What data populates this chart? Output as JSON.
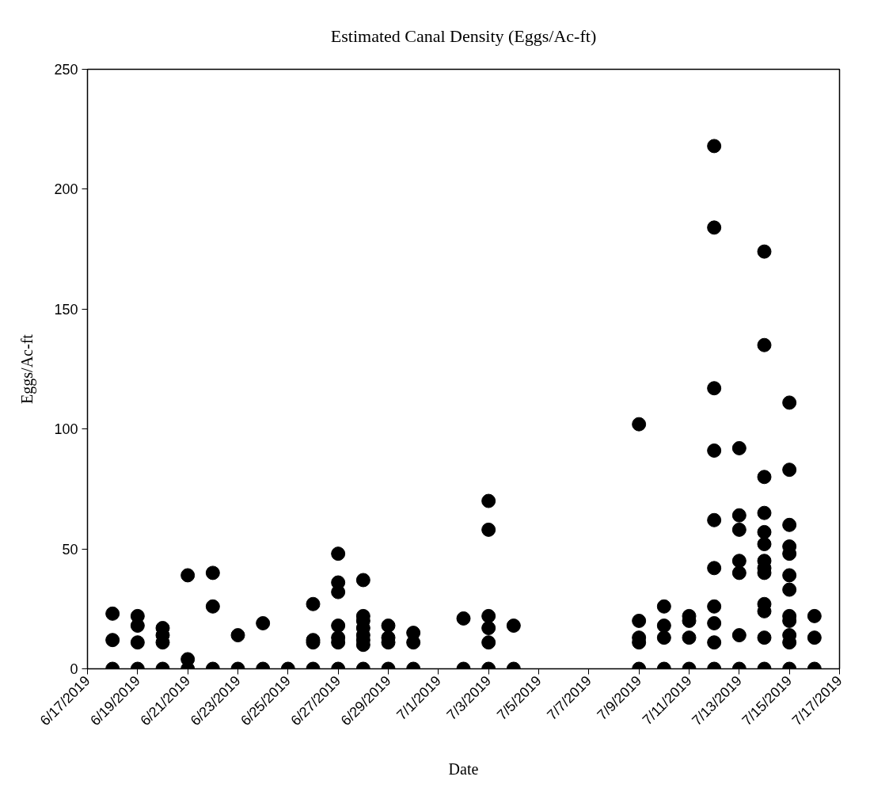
{
  "chart_data": {
    "type": "scatter",
    "title": "Estimated Canal Density (Eggs/Ac-ft)",
    "xlabel": "Date",
    "ylabel": "Eggs/Ac-ft",
    "marker": "circle",
    "grid": false,
    "xlim": [
      "2019-06-17",
      "2019-07-17"
    ],
    "xticks": [
      {
        "value": "2019-06-17",
        "label": "6/17/2019"
      },
      {
        "value": "2019-06-19",
        "label": "6/19/2019"
      },
      {
        "value": "2019-06-21",
        "label": "6/21/2019"
      },
      {
        "value": "2019-06-23",
        "label": "6/23/2019"
      },
      {
        "value": "2019-06-25",
        "label": "6/25/2019"
      },
      {
        "value": "2019-06-27",
        "label": "6/27/2019"
      },
      {
        "value": "2019-06-29",
        "label": "6/29/2019"
      },
      {
        "value": "2019-07-01",
        "label": "7/1/2019"
      },
      {
        "value": "2019-07-03",
        "label": "7/3/2019"
      },
      {
        "value": "2019-07-05",
        "label": "7/5/2019"
      },
      {
        "value": "2019-07-07",
        "label": "7/7/2019"
      },
      {
        "value": "2019-07-09",
        "label": "7/9/2019"
      },
      {
        "value": "2019-07-11",
        "label": "7/11/2019"
      },
      {
        "value": "2019-07-13",
        "label": "7/13/2019"
      },
      {
        "value": "2019-07-15",
        "label": "7/15/2019"
      },
      {
        "value": "2019-07-17",
        "label": "7/17/2019"
      }
    ],
    "ylim": [
      0,
      250
    ],
    "yticks": [
      0,
      50,
      100,
      150,
      200,
      250
    ],
    "series": [
      {
        "color": "#000000",
        "x": [
          "2019-06-18",
          "2019-06-18",
          "2019-06-18",
          "2019-06-19",
          "2019-06-19",
          "2019-06-19",
          "2019-06-19",
          "2019-06-20",
          "2019-06-20",
          "2019-06-20",
          "2019-06-20",
          "2019-06-21",
          "2019-06-21",
          "2019-06-21",
          "2019-06-22",
          "2019-06-22",
          "2019-06-22",
          "2019-06-23",
          "2019-06-23",
          "2019-06-24",
          "2019-06-24",
          "2019-06-25",
          "2019-06-26",
          "2019-06-26",
          "2019-06-26",
          "2019-06-26",
          "2019-06-27",
          "2019-06-27",
          "2019-06-27",
          "2019-06-27",
          "2019-06-27",
          "2019-06-27",
          "2019-06-27",
          "2019-06-28",
          "2019-06-28",
          "2019-06-28",
          "2019-06-28",
          "2019-06-28",
          "2019-06-28",
          "2019-06-28",
          "2019-06-28",
          "2019-06-29",
          "2019-06-29",
          "2019-06-29",
          "2019-06-29",
          "2019-06-30",
          "2019-06-30",
          "2019-06-30",
          "2019-07-02",
          "2019-07-02",
          "2019-07-03",
          "2019-07-03",
          "2019-07-03",
          "2019-07-03",
          "2019-07-03",
          "2019-07-03",
          "2019-07-04",
          "2019-07-04",
          "2019-07-09",
          "2019-07-09",
          "2019-07-09",
          "2019-07-09",
          "2019-07-09",
          "2019-07-10",
          "2019-07-10",
          "2019-07-10",
          "2019-07-10",
          "2019-07-11",
          "2019-07-11",
          "2019-07-11",
          "2019-07-11",
          "2019-07-12",
          "2019-07-12",
          "2019-07-12",
          "2019-07-12",
          "2019-07-12",
          "2019-07-12",
          "2019-07-12",
          "2019-07-12",
          "2019-07-12",
          "2019-07-12",
          "2019-07-13",
          "2019-07-13",
          "2019-07-13",
          "2019-07-13",
          "2019-07-13",
          "2019-07-13",
          "2019-07-13",
          "2019-07-14",
          "2019-07-14",
          "2019-07-14",
          "2019-07-14",
          "2019-07-14",
          "2019-07-14",
          "2019-07-14",
          "2019-07-14",
          "2019-07-14",
          "2019-07-14",
          "2019-07-14",
          "2019-07-14",
          "2019-07-14",
          "2019-07-15",
          "2019-07-15",
          "2019-07-15",
          "2019-07-15",
          "2019-07-15",
          "2019-07-15",
          "2019-07-15",
          "2019-07-15",
          "2019-07-15",
          "2019-07-15",
          "2019-07-15",
          "2019-07-15",
          "2019-07-16",
          "2019-07-16",
          "2019-07-16"
        ],
        "values": [
          0,
          12,
          23,
          0,
          11,
          18,
          22,
          0,
          11,
          14,
          17,
          0,
          4,
          39,
          0,
          26,
          40,
          0,
          14,
          0,
          19,
          0,
          0,
          11,
          12,
          27,
          0,
          11,
          13,
          18,
          32,
          36,
          48,
          0,
          10,
          12,
          14,
          17,
          20,
          22,
          37,
          0,
          11,
          13,
          18,
          0,
          11,
          15,
          0,
          21,
          0,
          11,
          17,
          22,
          58,
          70,
          0,
          18,
          0,
          11,
          13,
          20,
          102,
          0,
          13,
          18,
          26,
          0,
          13,
          20,
          22,
          0,
          11,
          19,
          26,
          42,
          62,
          91,
          117,
          184,
          218,
          0,
          14,
          40,
          45,
          58,
          64,
          92,
          0,
          13,
          24,
          27,
          40,
          42,
          45,
          52,
          57,
          65,
          80,
          135,
          174,
          0,
          11,
          14,
          20,
          22,
          33,
          39,
          48,
          51,
          60,
          83,
          111,
          0,
          13,
          22
        ]
      }
    ]
  }
}
